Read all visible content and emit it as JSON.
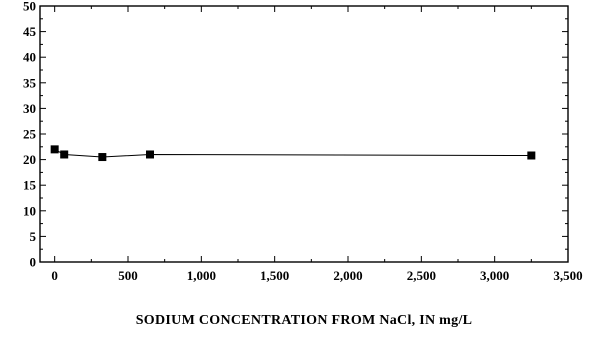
{
  "chart_data": {
    "type": "line",
    "title": "",
    "xlabel": "SODIUM CONCENTRATION FROM NaCl,  IN mg/L",
    "ylabel": "",
    "xlim": [
      -100,
      3500
    ],
    "ylim": [
      0,
      50
    ],
    "x_ticks": [
      0,
      500,
      1000,
      1500,
      2000,
      2500,
      3000,
      3500
    ],
    "x_tick_labels": [
      "0",
      "500",
      "1,000",
      "1,500",
      "2,000",
      "2,500",
      "3,000",
      "3,500"
    ],
    "y_ticks": [
      0,
      5,
      10,
      15,
      20,
      25,
      30,
      35,
      40,
      45,
      50
    ],
    "y_tick_labels": [
      "0",
      "5",
      "10",
      "15",
      "20",
      "25",
      "30",
      "35",
      "40",
      "45",
      "50"
    ],
    "grid": false,
    "marker": "square",
    "series": [
      {
        "x": [
          0,
          65,
          325,
          650,
          3250
        ],
        "y": [
          22,
          21,
          20.5,
          21,
          20.8
        ]
      }
    ]
  }
}
